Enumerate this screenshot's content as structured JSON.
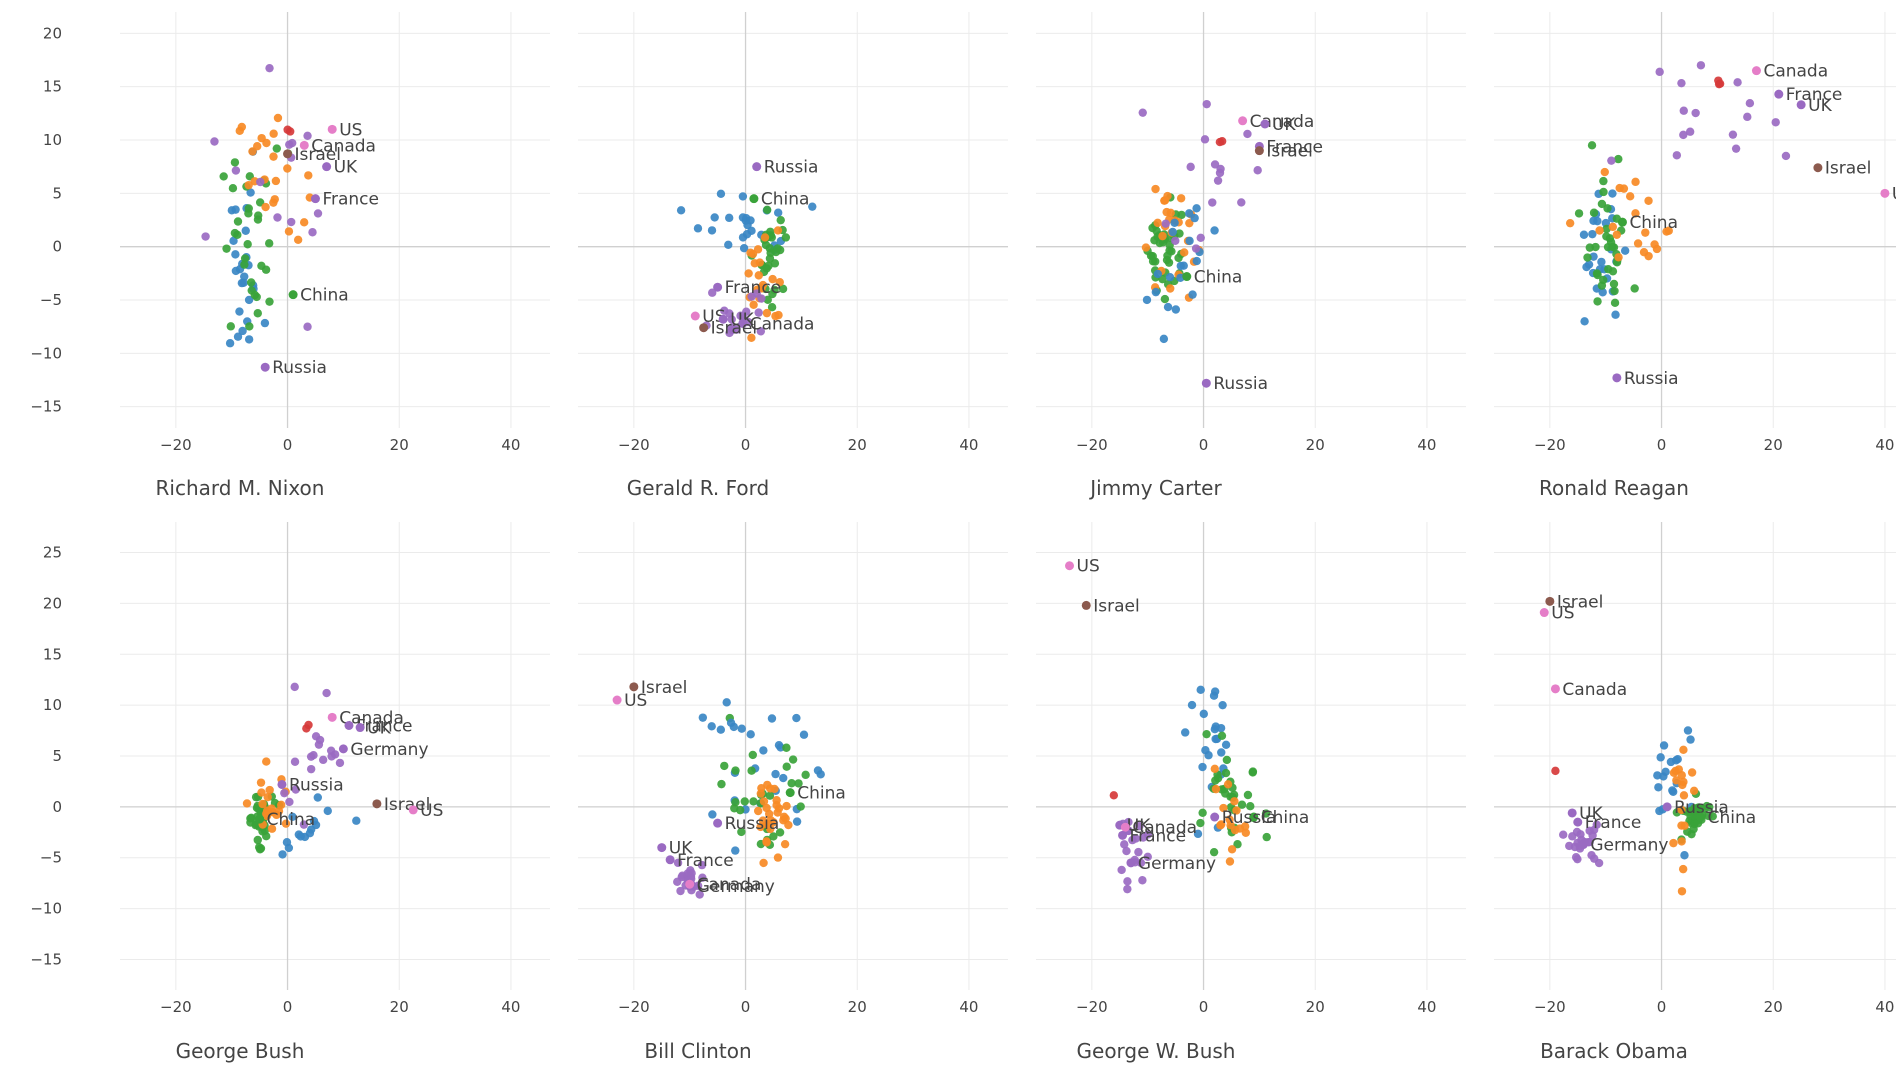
{
  "colors": {
    "blue": "#3a87c4",
    "orange": "#f78a25",
    "green": "#3aa33a",
    "red": "#d63a3a",
    "purple": "#9a6ac2",
    "brown": "#8c5a4e",
    "pink": "#e57ec8"
  },
  "chart_data": [
    {
      "type": "scatter",
      "title": "Richard M. Nixon",
      "xlim": [
        -30,
        47
      ],
      "ylim": [
        -17,
        22
      ],
      "xticks": [
        -20,
        0,
        20,
        40
      ],
      "yticks": [
        -15,
        -10,
        -5,
        0,
        5,
        10,
        15,
        20
      ],
      "labels": [
        {
          "text": "US",
          "x": 8,
          "y": 11,
          "color": "pink"
        },
        {
          "text": "Canada",
          "x": 3,
          "y": 9.5,
          "color": "pink"
        },
        {
          "text": "Israel",
          "x": 0,
          "y": 8.7,
          "color": "brown"
        },
        {
          "text": "UK",
          "x": 7,
          "y": 7.5,
          "color": "purple"
        },
        {
          "text": "France",
          "x": 5,
          "y": 4.5,
          "color": "purple"
        },
        {
          "text": "China",
          "x": 1,
          "y": -4.5,
          "color": "green"
        },
        {
          "text": "Russia",
          "x": -4,
          "y": -11.3,
          "color": "purple"
        }
      ],
      "clusters": [
        {
          "color": "blue",
          "cx": -8,
          "cy": -3,
          "sx": 1.8,
          "sy": 4,
          "n": 26
        },
        {
          "color": "green",
          "cx": -6,
          "cy": 0,
          "sx": 3,
          "sy": 4.5,
          "n": 32
        },
        {
          "color": "orange",
          "cx": -3,
          "cy": 7,
          "sx": 3,
          "sy": 3,
          "n": 22
        },
        {
          "color": "purple",
          "cx": -2,
          "cy": 4,
          "sx": 6,
          "sy": 6,
          "n": 14
        },
        {
          "color": "red",
          "cx": 0,
          "cy": 10.5,
          "sx": 0.3,
          "sy": 0.3,
          "n": 2
        }
      ]
    },
    {
      "type": "scatter",
      "title": "Gerald R. Ford",
      "xlim": [
        -30,
        47
      ],
      "ylim": [
        -17,
        22
      ],
      "xticks": [
        -20,
        0,
        20,
        40
      ],
      "yticks": [],
      "labels": [
        {
          "text": "Russia",
          "x": 2,
          "y": 7.5,
          "color": "purple"
        },
        {
          "text": "China",
          "x": 1.5,
          "y": 4.5,
          "color": "green"
        },
        {
          "text": "France",
          "x": -5,
          "y": -3.8,
          "color": "purple"
        },
        {
          "text": "US",
          "x": -9,
          "y": -6.5,
          "color": "pink"
        },
        {
          "text": "UK",
          "x": -4,
          "y": -6.8,
          "color": "purple"
        },
        {
          "text": "Canada",
          "x": -0.5,
          "y": -7.2,
          "color": "purple"
        },
        {
          "text": "Israel",
          "x": -7.5,
          "y": -7.6,
          "color": "brown"
        }
      ],
      "clusters": [
        {
          "color": "blue",
          "cx": 0,
          "cy": 2,
          "sx": 4.5,
          "sy": 1.5,
          "n": 24
        },
        {
          "color": "green",
          "cx": 5,
          "cy": -0.5,
          "sx": 1.2,
          "sy": 2.5,
          "n": 30
        },
        {
          "color": "orange",
          "cx": 3,
          "cy": -3.5,
          "sx": 2,
          "sy": 2.5,
          "n": 22
        },
        {
          "color": "purple",
          "cx": -1,
          "cy": -6,
          "sx": 3.5,
          "sy": 1.5,
          "n": 18
        }
      ]
    },
    {
      "type": "scatter",
      "title": "Jimmy Carter",
      "xlim": [
        -30,
        47
      ],
      "ylim": [
        -17,
        22
      ],
      "xticks": [
        -20,
        0,
        20,
        40
      ],
      "yticks": [],
      "labels": [
        {
          "text": "Canada",
          "x": 7,
          "y": 11.8,
          "color": "pink"
        },
        {
          "text": "UK",
          "x": 11,
          "y": 11.5,
          "color": "purple"
        },
        {
          "text": "France",
          "x": 10,
          "y": 9.4,
          "color": "purple"
        },
        {
          "text": "Israel",
          "x": 10,
          "y": 9,
          "color": "brown"
        },
        {
          "text": "China",
          "x": -3,
          "y": -2.8,
          "color": "green"
        },
        {
          "text": "Russia",
          "x": 0.5,
          "y": -12.8,
          "color": "purple"
        }
      ],
      "clusters": [
        {
          "color": "green",
          "cx": -7,
          "cy": 0,
          "sx": 1.5,
          "sy": 2.5,
          "n": 40
        },
        {
          "color": "orange",
          "cx": -6,
          "cy": 1,
          "sx": 2.2,
          "sy": 3,
          "n": 26
        },
        {
          "color": "blue",
          "cx": -4,
          "cy": -1.5,
          "sx": 3,
          "sy": 3,
          "n": 20
        },
        {
          "color": "purple",
          "cx": 0,
          "cy": 6,
          "sx": 4,
          "sy": 4,
          "n": 16
        },
        {
          "color": "red",
          "cx": 3,
          "cy": 10.2,
          "sx": 0.3,
          "sy": 0.3,
          "n": 2
        }
      ]
    },
    {
      "type": "scatter",
      "title": "Ronald Reagan",
      "xlim": [
        -30,
        47
      ],
      "ylim": [
        -17,
        22
      ],
      "xticks": [
        -20,
        0,
        20,
        40
      ],
      "yticks": [],
      "labels": [
        {
          "text": "Canada",
          "x": 17,
          "y": 16.5,
          "color": "pink"
        },
        {
          "text": "France",
          "x": 21,
          "y": 14.3,
          "color": "purple"
        },
        {
          "text": "UK",
          "x": 25,
          "y": 13.3,
          "color": "purple"
        },
        {
          "text": "Israel",
          "x": 28,
          "y": 7.4,
          "color": "brown"
        },
        {
          "text": "US",
          "x": 40,
          "y": 5,
          "color": "pink"
        },
        {
          "text": "China",
          "x": -7,
          "y": 2.3,
          "color": "green"
        },
        {
          "text": "Russia",
          "x": -8,
          "y": -12.3,
          "color": "purple"
        }
      ],
      "clusters": [
        {
          "color": "blue",
          "cx": -11,
          "cy": -1,
          "sx": 2,
          "sy": 3,
          "n": 26
        },
        {
          "color": "green",
          "cx": -10,
          "cy": 0,
          "sx": 2,
          "sy": 3.5,
          "n": 34
        },
        {
          "color": "orange",
          "cx": -4,
          "cy": 2,
          "sx": 5,
          "sy": 3,
          "n": 20
        },
        {
          "color": "purple",
          "cx": 6,
          "cy": 12,
          "sx": 6,
          "sy": 3,
          "n": 16
        },
        {
          "color": "red",
          "cx": 10.5,
          "cy": 15.4,
          "sx": 0.3,
          "sy": 0.3,
          "n": 3
        }
      ]
    },
    {
      "type": "scatter",
      "title": "George Bush",
      "xlim": [
        -30,
        47
      ],
      "ylim": [
        -18,
        28
      ],
      "xticks": [
        -20,
        0,
        20,
        40
      ],
      "yticks": [
        -15,
        -10,
        -5,
        0,
        5,
        10,
        15,
        20,
        25
      ],
      "labels": [
        {
          "text": "Canada",
          "x": 8,
          "y": 8.8,
          "color": "pink"
        },
        {
          "text": "France",
          "x": 11,
          "y": 8,
          "color": "purple"
        },
        {
          "text": "UK",
          "x": 13,
          "y": 7.8,
          "color": "purple"
        },
        {
          "text": "Germany",
          "x": 10,
          "y": 5.7,
          "color": "purple"
        },
        {
          "text": "Russia",
          "x": -1,
          "y": 2.2,
          "color": "purple"
        },
        {
          "text": "Israel",
          "x": 16,
          "y": 0.3,
          "color": "brown"
        },
        {
          "text": "US",
          "x": 22.5,
          "y": -0.3,
          "color": "pink"
        },
        {
          "text": "China",
          "x": -5,
          "y": -1.2,
          "color": "green"
        }
      ],
      "clusters": [
        {
          "color": "green",
          "cx": -5,
          "cy": -1,
          "sx": 1.2,
          "sy": 1.2,
          "n": 40
        },
        {
          "color": "orange",
          "cx": -3,
          "cy": 0,
          "sx": 2,
          "sy": 1.5,
          "n": 20
        },
        {
          "color": "blue",
          "cx": 2,
          "cy": -2,
          "sx": 4,
          "sy": 2,
          "n": 14
        },
        {
          "color": "purple",
          "cx": 5,
          "cy": 5,
          "sx": 4,
          "sy": 3,
          "n": 18
        },
        {
          "color": "red",
          "cx": 3.5,
          "cy": 8,
          "sx": 0.3,
          "sy": 0.3,
          "n": 2
        }
      ]
    },
    {
      "type": "scatter",
      "title": "Bill Clinton",
      "xlim": [
        -30,
        47
      ],
      "ylim": [
        -18,
        28
      ],
      "xticks": [
        -20,
        0,
        20,
        40
      ],
      "yticks": [],
      "labels": [
        {
          "text": "Israel",
          "x": -20,
          "y": 11.8,
          "color": "brown"
        },
        {
          "text": "US",
          "x": -23,
          "y": 10.5,
          "color": "pink"
        },
        {
          "text": "China",
          "x": 8,
          "y": 1.4,
          "color": "green"
        },
        {
          "text": "Russia",
          "x": -5,
          "y": -1.6,
          "color": "purple"
        },
        {
          "text": "UK",
          "x": -15,
          "y": -4,
          "color": "purple"
        },
        {
          "text": "France",
          "x": -13.5,
          "y": -5.2,
          "color": "purple"
        },
        {
          "text": "Germany",
          "x": -10,
          "y": -7.8,
          "color": "purple"
        },
        {
          "text": "Canada",
          "x": -10,
          "y": -7.6,
          "color": "pink"
        }
      ],
      "clusters": [
        {
          "color": "blue",
          "cx": 3,
          "cy": 3,
          "sx": 4,
          "sy": 3,
          "n": 22
        },
        {
          "color": "green",
          "cx": 4,
          "cy": 1,
          "sx": 4,
          "sy": 3.5,
          "n": 30
        },
        {
          "color": "orange",
          "cx": 5,
          "cy": -1,
          "sx": 1.5,
          "sy": 1.5,
          "n": 30
        },
        {
          "color": "purple",
          "cx": -10,
          "cy": -7,
          "sx": 1.5,
          "sy": 1,
          "n": 22
        },
        {
          "color": "blue",
          "cx": -3,
          "cy": 8,
          "sx": 2,
          "sy": 2,
          "n": 6
        }
      ]
    },
    {
      "type": "scatter",
      "title": "George W. Bush",
      "xlim": [
        -30,
        47
      ],
      "ylim": [
        -18,
        28
      ],
      "xticks": [
        -20,
        0,
        20,
        40
      ],
      "yticks": [],
      "labels": [
        {
          "text": "US",
          "x": -24,
          "y": 23.7,
          "color": "pink"
        },
        {
          "text": "Israel",
          "x": -21,
          "y": 19.8,
          "color": "brown"
        },
        {
          "text": "China",
          "x": 9,
          "y": -1,
          "color": "green"
        },
        {
          "text": "Russia",
          "x": 2,
          "y": -1,
          "color": "purple"
        },
        {
          "text": "UK",
          "x": -15,
          "y": -1.8,
          "color": "purple"
        },
        {
          "text": "Canada",
          "x": -14,
          "y": -2,
          "color": "pink"
        },
        {
          "text": "France",
          "x": -14.5,
          "y": -2.8,
          "color": "purple"
        },
        {
          "text": "Germany",
          "x": -13,
          "y": -5.5,
          "color": "purple"
        }
      ],
      "clusters": [
        {
          "color": "blue",
          "cx": 1,
          "cy": 5,
          "sx": 2,
          "sy": 3,
          "n": 22
        },
        {
          "color": "green",
          "cx": 5,
          "cy": 0,
          "sx": 3,
          "sy": 2.5,
          "n": 34
        },
        {
          "color": "orange",
          "cx": 4,
          "cy": -1.5,
          "sx": 2,
          "sy": 2,
          "n": 16
        },
        {
          "color": "purple",
          "cx": -13,
          "cy": -4.5,
          "sx": 1.5,
          "sy": 1.5,
          "n": 20
        },
        {
          "color": "red",
          "cx": -16,
          "cy": 1.1,
          "sx": 0.2,
          "sy": 0.2,
          "n": 1
        }
      ]
    },
    {
      "type": "scatter",
      "title": "Barack Obama",
      "xlim": [
        -30,
        47
      ],
      "ylim": [
        -18,
        28
      ],
      "xticks": [
        -20,
        0,
        20,
        40
      ],
      "yticks": [],
      "labels": [
        {
          "text": "Israel",
          "x": -20,
          "y": 20.2,
          "color": "brown"
        },
        {
          "text": "US",
          "x": -21,
          "y": 19.1,
          "color": "pink"
        },
        {
          "text": "Canada",
          "x": -19,
          "y": 11.6,
          "color": "pink"
        },
        {
          "text": "Russia",
          "x": 1,
          "y": 0,
          "color": "purple"
        },
        {
          "text": "China",
          "x": 7,
          "y": -1,
          "color": "green"
        },
        {
          "text": "UK",
          "x": -16,
          "y": -0.6,
          "color": "purple"
        },
        {
          "text": "France",
          "x": -15,
          "y": -1.5,
          "color": "purple"
        },
        {
          "text": "Germany",
          "x": -14,
          "y": -3.7,
          "color": "purple"
        }
      ],
      "clusters": [
        {
          "color": "blue",
          "cx": 2,
          "cy": 3,
          "sx": 2,
          "sy": 3,
          "n": 18
        },
        {
          "color": "green",
          "cx": 6,
          "cy": -0.8,
          "sx": 1.5,
          "sy": 1,
          "n": 34
        },
        {
          "color": "orange",
          "cx": 4,
          "cy": 0,
          "sx": 1,
          "sy": 2.5,
          "n": 18
        },
        {
          "color": "purple",
          "cx": -14,
          "cy": -3.5,
          "sx": 1.5,
          "sy": 1,
          "n": 22
        },
        {
          "color": "red",
          "cx": -19,
          "cy": 3.7,
          "sx": 0.2,
          "sy": 0.2,
          "n": 1
        }
      ]
    }
  ]
}
